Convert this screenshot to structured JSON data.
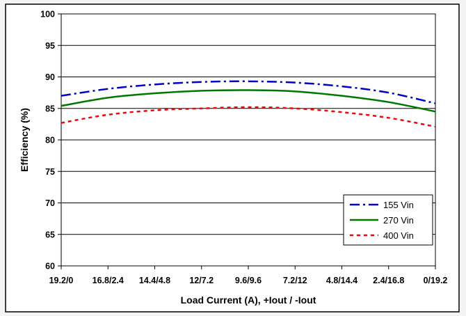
{
  "chart_data": {
    "type": "line",
    "xlabel": "Load Current (A), +Iout / -Iout",
    "ylabel": "Efficiency (%)",
    "categories": [
      "19.2/0",
      "16.8/2.4",
      "14.4/4.8",
      "12/7.2",
      "9.6/9.6",
      "7.2/12",
      "4.8/14.4",
      "2.4/16.8",
      "0/19.2"
    ],
    "yticks": [
      "60",
      "65",
      "70",
      "75",
      "80",
      "85",
      "90",
      "95",
      "100"
    ],
    "ylim": [
      60,
      100
    ],
    "grid": "horizontal",
    "legend_position": "bottom-right",
    "series": [
      {
        "name": "155 Vin",
        "color": "#0000cc",
        "dash": "dash-dot",
        "values": [
          87.0,
          88.1,
          88.8,
          89.2,
          89.3,
          89.1,
          88.5,
          87.5,
          85.8
        ]
      },
      {
        "name": "270 Vin",
        "color": "#007700",
        "dash": "solid",
        "values": [
          85.4,
          86.7,
          87.4,
          87.8,
          87.9,
          87.7,
          87.0,
          86.0,
          84.5
        ]
      },
      {
        "name": "400 Vin",
        "color": "#ff0000",
        "dash": "dotted",
        "values": [
          82.7,
          84.0,
          84.7,
          85.0,
          85.2,
          85.0,
          84.4,
          83.5,
          82.1
        ]
      }
    ]
  }
}
